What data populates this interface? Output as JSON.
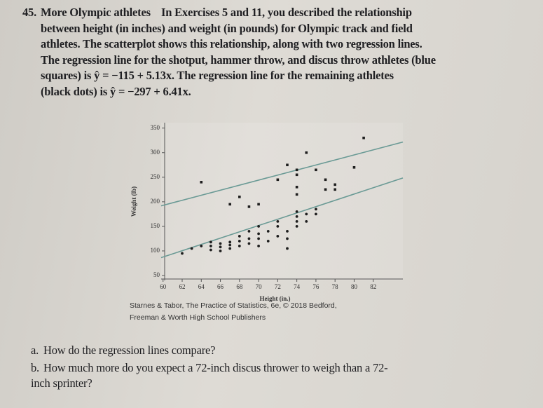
{
  "problem": {
    "number": "45.",
    "title": "More Olympic athletes",
    "lines": [
      "In Exercises 5 and 11, you described the relationship",
      "between height (in inches) and weight (in pounds) for Olympic track and field",
      "athletes. The scatterplot shows this relationship, along with two regression lines.",
      "The regression line for the shotput, hammer throw, and discus throw athletes (blue",
      "squares) is ŷ = −115 + 5.13x. The regression line for the remaining athletes",
      "(black dots) is ŷ = −297 + 6.41x."
    ]
  },
  "chart_data": {
    "type": "scatter",
    "x_label": "Height (in.)",
    "y_label": "Weight (lb)",
    "xlim": [
      59.8,
      85.1
    ],
    "ylim": [
      40,
      361
    ],
    "xticks": [
      60,
      62,
      64,
      66,
      68,
      70,
      72,
      74,
      76,
      78,
      80,
      82
    ],
    "yticks": [
      50,
      100,
      150,
      200,
      250,
      300,
      350
    ],
    "series": [
      {
        "color": "#1e1e1e",
        "marker": "circle",
        "x": [
          62,
          63,
          64,
          65,
          65,
          65,
          66,
          66,
          66,
          67,
          67,
          67,
          68,
          68,
          68,
          69,
          69,
          69,
          70,
          70,
          70,
          70,
          71,
          71,
          72,
          72,
          72,
          73,
          73,
          74,
          74,
          74,
          74,
          75,
          75,
          76,
          76,
          73
        ],
        "values": [
          95,
          105,
          110,
          102,
          110,
          118,
          100,
          108,
          115,
          105,
          112,
          118,
          110,
          120,
          130,
          115,
          125,
          140,
          110,
          125,
          135,
          150,
          120,
          140,
          130,
          150,
          160,
          140,
          125,
          150,
          160,
          170,
          180,
          160,
          175,
          175,
          185,
          105
        ]
      },
      {
        "color": "#1e1e1e",
        "marker": "square",
        "x": [
          64,
          67,
          68,
          69,
          70,
          72,
          73,
          74,
          74,
          74,
          74,
          75,
          76,
          77,
          78,
          78,
          80,
          81,
          77
        ],
        "values": [
          240,
          195,
          210,
          190,
          195,
          245,
          275,
          265,
          255,
          230,
          215,
          300,
          265,
          225,
          235,
          225,
          270,
          330,
          245
        ]
      }
    ],
    "lines": [
      {
        "color": "#6a9a95",
        "x": [
          59.8,
          85.1
        ],
        "values": [
          191.8,
          321.6
        ]
      },
      {
        "color": "#6a9a95",
        "x": [
          59.8,
          85.1
        ],
        "values": [
          86.3,
          248.5
        ]
      }
    ]
  },
  "credit": [
    "Starnes & Tabor, The Practice of Statistics, 6e, © 2018 Bedford,",
    "Freeman & Worth High School Publishers"
  ],
  "questions": [
    {
      "label": "a.",
      "lines": [
        "How do the regression lines compare?"
      ]
    },
    {
      "label": "b.",
      "lines": [
        "How much more do you expect a 72-inch discus thrower to weigh than a 72-",
        "inch sprinter?"
      ]
    }
  ]
}
